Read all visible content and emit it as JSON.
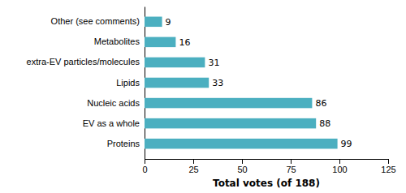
{
  "chart_data": {
    "type": "bar",
    "orientation": "horizontal",
    "categories": [
      "Proteins",
      "EV as a whole",
      "Nucleic acids",
      "Lipids",
      "extra-EV particles/molecules",
      "Metabolites",
      "Other (see comments)"
    ],
    "values": [
      99,
      88,
      86,
      33,
      31,
      16,
      9
    ],
    "color": "#4BAFC0",
    "xlabel": "Total votes (of 188)",
    "xlim": [
      0,
      125
    ],
    "xticks": [
      0,
      25,
      50,
      75,
      100,
      125
    ],
    "data_labels": true
  }
}
